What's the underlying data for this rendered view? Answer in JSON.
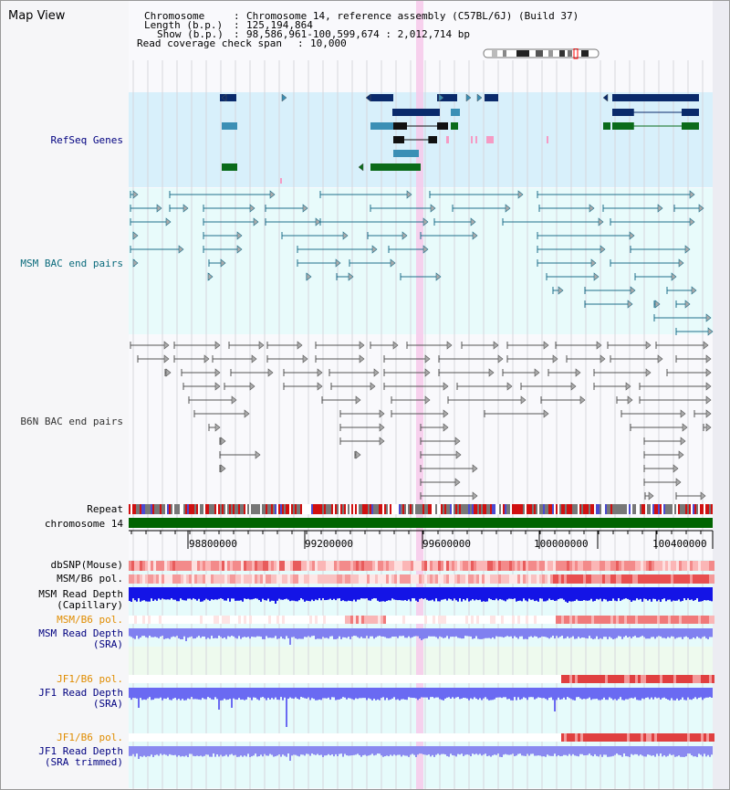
{
  "window": {
    "title": "Map View"
  },
  "info": {
    "chromosome_key": "Chromosome",
    "chromosome_val": "Chromosome 14, reference assembly (C57BL/6J) (Build 37)",
    "length_key": "Length (b.p.)",
    "length_val": "125,194,864",
    "show_key": "Show (b.p.)",
    "show_val": "98,586,961-100,599,674 : 2,012,714 bp",
    "coverage_key": "Read coverage check span",
    "coverage_val": "10,000",
    "separator": ":"
  },
  "tracks": {
    "refseq": "RefSeq Genes",
    "msm_bac": "MSM BAC end pairs",
    "b6n_bac": "B6N BAC end pairs",
    "repeat": "Repeat",
    "chromosome": "chromosome 14",
    "dbsnp": "dbSNP(Mouse)",
    "msm_b6_pol": "MSM/B6 pol.",
    "msm_depth_cap_1": "MSM Read Depth",
    "msm_depth_cap_2": "(Capillary)",
    "msm_b6_pol_sra": "MSM/B6 pol.",
    "msm_depth_sra_1": "MSM Read Depth",
    "msm_depth_sra_2": "(SRA)",
    "jf1_b6_pol": "JF1/B6 pol.",
    "jf1_depth_sra_1": "JF1 Read Depth",
    "jf1_depth_sra_2": "(SRA)",
    "jf1_b6_pol_trim": "JF1/B6 pol.",
    "jf1_depth_trim_1": "JF1 Read Depth",
    "jf1_depth_trim_2": "(SRA trimmed)"
  },
  "ruler": {
    "ticks": [
      "98800000",
      "99200000",
      "99600000",
      "100000000",
      "100400000"
    ]
  },
  "colors": {
    "label_black": "#000000",
    "label_navy": "#000080",
    "label_teal": "#0b6b7c",
    "label_orange": "#e08c00",
    "refseq_bg": "#d8f0fb",
    "msm_bg": "#e6fbfb",
    "sra_bg": "#eefaee",
    "highlight": "#f7c9ea",
    "chromosome_bar": "#006400",
    "depth_blue": "#1414e6",
    "depth_light": "#8080f0"
  }
}
